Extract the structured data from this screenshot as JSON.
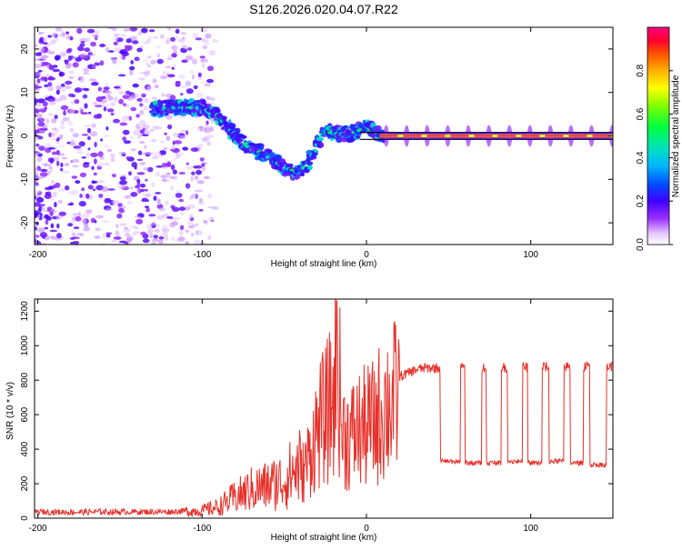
{
  "title": "S126.2026.020.04.07.R22",
  "chart_data": [
    {
      "type": "heatmap",
      "title": "S126.2026.020.04.07.R22",
      "xlabel": "Height of straight line (km)",
      "ylabel": "Frequency (Hz)",
      "xlim": [
        -202,
        150
      ],
      "ylim": [
        -25,
        25
      ],
      "xticks": [
        -200,
        -100,
        0,
        100
      ],
      "xtick_labels": [
        "-200",
        "-100",
        "0",
        "100"
      ],
      "yticks": [
        -20,
        -10,
        0,
        10,
        20
      ],
      "ytick_labels": [
        "-20",
        "-10",
        "0",
        "10",
        "20"
      ],
      "colorbar": {
        "label": "Normalized spectral amplitude",
        "range": [
          0,
          1
        ],
        "ticks": [
          0.0,
          0.2,
          0.4,
          0.6,
          0.8
        ],
        "tick_labels": [
          "0.0",
          "0.2",
          "0.4",
          "0.6",
          "0.8"
        ]
      },
      "ridge": {
        "x": [
          -130,
          -120,
          -110,
          -100,
          -90,
          -80,
          -70,
          -60,
          -50,
          -45,
          -40,
          -35,
          -30,
          -25,
          -20,
          -10,
          0,
          5,
          10,
          150
        ],
        "y": [
          6,
          6.5,
          6.5,
          6.5,
          4.5,
          0,
          -3,
          -4.5,
          -7.5,
          -8,
          -8.5,
          -6,
          -2,
          1,
          0.5,
          0.5,
          2,
          0.8,
          0,
          0
        ]
      },
      "horizontal_lines_y": [
        -0.8,
        0.8
      ]
    },
    {
      "type": "line",
      "xlabel": "Height of straight line (km)",
      "ylabel": "SNR (10 * v/v)",
      "xlim": [
        -202,
        150
      ],
      "ylim": [
        0,
        1270
      ],
      "xticks": [
        -200,
        -100,
        0,
        100
      ],
      "xtick_labels": [
        "-200",
        "-100",
        "0",
        "100"
      ],
      "yticks": [
        0,
        200,
        400,
        600,
        800,
        1000,
        1200
      ],
      "ytick_labels": [
        "0",
        "200",
        "400",
        "600",
        "800",
        "1000",
        "1200"
      ],
      "series": [
        {
          "name": "SNR",
          "color": "#e8302a",
          "x": [
            -202,
            -180,
            -160,
            -140,
            -120,
            -100,
            -90,
            -80,
            -70,
            -60,
            -50,
            -40,
            -35,
            -30,
            -25,
            -20,
            -18,
            -15,
            -10,
            -5,
            0,
            5,
            10,
            15,
            20,
            25,
            30,
            35,
            150
          ],
          "y": [
            30,
            28,
            30,
            30,
            30,
            40,
            60,
            110,
            150,
            170,
            200,
            280,
            420,
            600,
            700,
            800,
            1260,
            600,
            550,
            600,
            620,
            650,
            750,
            800,
            820,
            840,
            860,
            870,
            880
          ],
          "dropouts": [
            {
              "start": 45,
              "end": 57,
              "low": 330
            },
            {
              "start": 60,
              "end": 70,
              "low": 320
            },
            {
              "start": 73,
              "end": 82,
              "low": 320
            },
            {
              "start": 86,
              "end": 95,
              "low": 330
            },
            {
              "start": 98,
              "end": 107,
              "low": 320
            },
            {
              "start": 111,
              "end": 120,
              "low": 330
            },
            {
              "start": 124,
              "end": 132,
              "low": 320
            },
            {
              "start": 136,
              "end": 146,
              "low": 310
            }
          ]
        }
      ]
    }
  ]
}
